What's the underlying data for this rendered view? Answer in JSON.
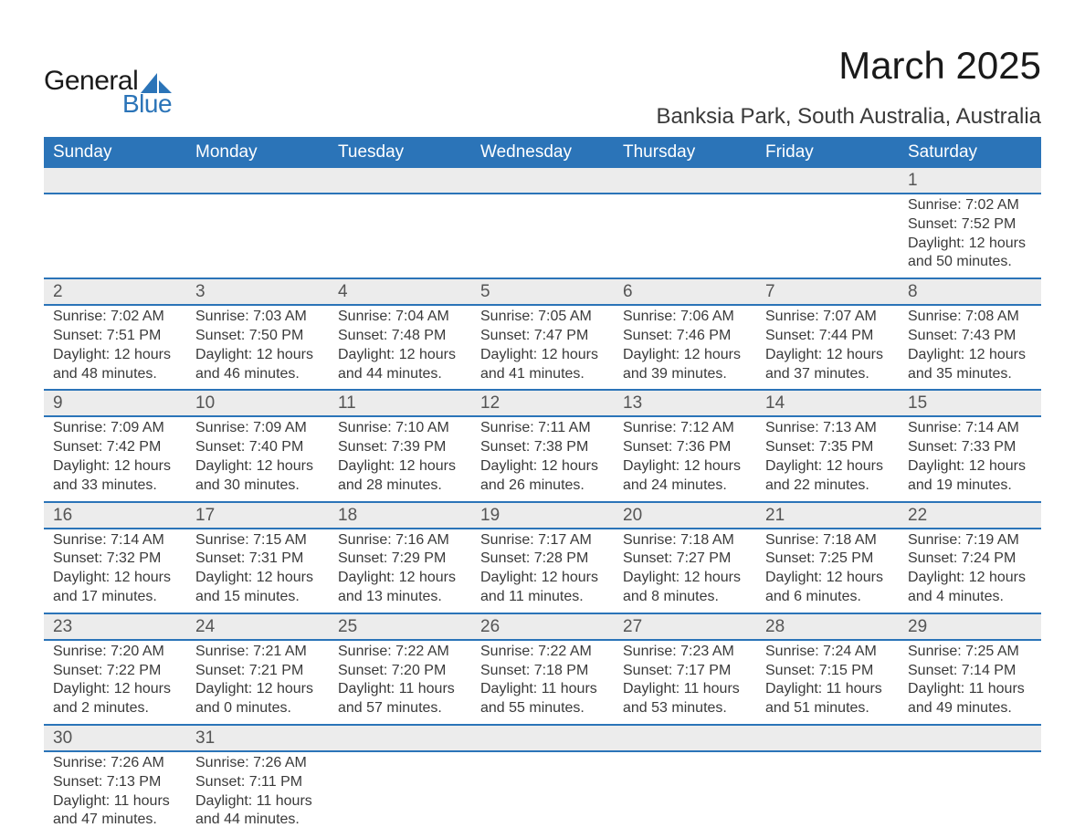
{
  "logo": {
    "text_top": "General",
    "text_bottom": "Blue",
    "sail_color": "#2b74b8"
  },
  "title": "March 2025",
  "location": "Banksia Park, South Australia, Australia",
  "colors": {
    "header_bg": "#2b74b8",
    "header_text": "#ffffff",
    "daynum_bg": "#ececec",
    "border": "#2b74b8",
    "body_text": "#3a3a3a",
    "page_bg": "#ffffff"
  },
  "typography": {
    "title_fontsize": 42,
    "location_fontsize": 24,
    "header_fontsize": 19,
    "daynum_fontsize": 19,
    "data_fontsize": 16,
    "font_family": "Arial"
  },
  "calendar": {
    "type": "table",
    "columns": [
      "Sunday",
      "Monday",
      "Tuesday",
      "Wednesday",
      "Thursday",
      "Friday",
      "Saturday"
    ],
    "weeks": [
      [
        null,
        null,
        null,
        null,
        null,
        null,
        {
          "d": "1",
          "sr": "7:02 AM",
          "ss": "7:52 PM",
          "dl": "12 hours and 50 minutes."
        }
      ],
      [
        {
          "d": "2",
          "sr": "7:02 AM",
          "ss": "7:51 PM",
          "dl": "12 hours and 48 minutes."
        },
        {
          "d": "3",
          "sr": "7:03 AM",
          "ss": "7:50 PM",
          "dl": "12 hours and 46 minutes."
        },
        {
          "d": "4",
          "sr": "7:04 AM",
          "ss": "7:48 PM",
          "dl": "12 hours and 44 minutes."
        },
        {
          "d": "5",
          "sr": "7:05 AM",
          "ss": "7:47 PM",
          "dl": "12 hours and 41 minutes."
        },
        {
          "d": "6",
          "sr": "7:06 AM",
          "ss": "7:46 PM",
          "dl": "12 hours and 39 minutes."
        },
        {
          "d": "7",
          "sr": "7:07 AM",
          "ss": "7:44 PM",
          "dl": "12 hours and 37 minutes."
        },
        {
          "d": "8",
          "sr": "7:08 AM",
          "ss": "7:43 PM",
          "dl": "12 hours and 35 minutes."
        }
      ],
      [
        {
          "d": "9",
          "sr": "7:09 AM",
          "ss": "7:42 PM",
          "dl": "12 hours and 33 minutes."
        },
        {
          "d": "10",
          "sr": "7:09 AM",
          "ss": "7:40 PM",
          "dl": "12 hours and 30 minutes."
        },
        {
          "d": "11",
          "sr": "7:10 AM",
          "ss": "7:39 PM",
          "dl": "12 hours and 28 minutes."
        },
        {
          "d": "12",
          "sr": "7:11 AM",
          "ss": "7:38 PM",
          "dl": "12 hours and 26 minutes."
        },
        {
          "d": "13",
          "sr": "7:12 AM",
          "ss": "7:36 PM",
          "dl": "12 hours and 24 minutes."
        },
        {
          "d": "14",
          "sr": "7:13 AM",
          "ss": "7:35 PM",
          "dl": "12 hours and 22 minutes."
        },
        {
          "d": "15",
          "sr": "7:14 AM",
          "ss": "7:33 PM",
          "dl": "12 hours and 19 minutes."
        }
      ],
      [
        {
          "d": "16",
          "sr": "7:14 AM",
          "ss": "7:32 PM",
          "dl": "12 hours and 17 minutes."
        },
        {
          "d": "17",
          "sr": "7:15 AM",
          "ss": "7:31 PM",
          "dl": "12 hours and 15 minutes."
        },
        {
          "d": "18",
          "sr": "7:16 AM",
          "ss": "7:29 PM",
          "dl": "12 hours and 13 minutes."
        },
        {
          "d": "19",
          "sr": "7:17 AM",
          "ss": "7:28 PM",
          "dl": "12 hours and 11 minutes."
        },
        {
          "d": "20",
          "sr": "7:18 AM",
          "ss": "7:27 PM",
          "dl": "12 hours and 8 minutes."
        },
        {
          "d": "21",
          "sr": "7:18 AM",
          "ss": "7:25 PM",
          "dl": "12 hours and 6 minutes."
        },
        {
          "d": "22",
          "sr": "7:19 AM",
          "ss": "7:24 PM",
          "dl": "12 hours and 4 minutes."
        }
      ],
      [
        {
          "d": "23",
          "sr": "7:20 AM",
          "ss": "7:22 PM",
          "dl": "12 hours and 2 minutes."
        },
        {
          "d": "24",
          "sr": "7:21 AM",
          "ss": "7:21 PM",
          "dl": "12 hours and 0 minutes."
        },
        {
          "d": "25",
          "sr": "7:22 AM",
          "ss": "7:20 PM",
          "dl": "11 hours and 57 minutes."
        },
        {
          "d": "26",
          "sr": "7:22 AM",
          "ss": "7:18 PM",
          "dl": "11 hours and 55 minutes."
        },
        {
          "d": "27",
          "sr": "7:23 AM",
          "ss": "7:17 PM",
          "dl": "11 hours and 53 minutes."
        },
        {
          "d": "28",
          "sr": "7:24 AM",
          "ss": "7:15 PM",
          "dl": "11 hours and 51 minutes."
        },
        {
          "d": "29",
          "sr": "7:25 AM",
          "ss": "7:14 PM",
          "dl": "11 hours and 49 minutes."
        }
      ],
      [
        {
          "d": "30",
          "sr": "7:26 AM",
          "ss": "7:13 PM",
          "dl": "11 hours and 47 minutes."
        },
        {
          "d": "31",
          "sr": "7:26 AM",
          "ss": "7:11 PM",
          "dl": "11 hours and 44 minutes."
        },
        null,
        null,
        null,
        null,
        null
      ]
    ],
    "labels": {
      "sunrise": "Sunrise:",
      "sunset": "Sunset:",
      "daylight": "Daylight:"
    }
  }
}
